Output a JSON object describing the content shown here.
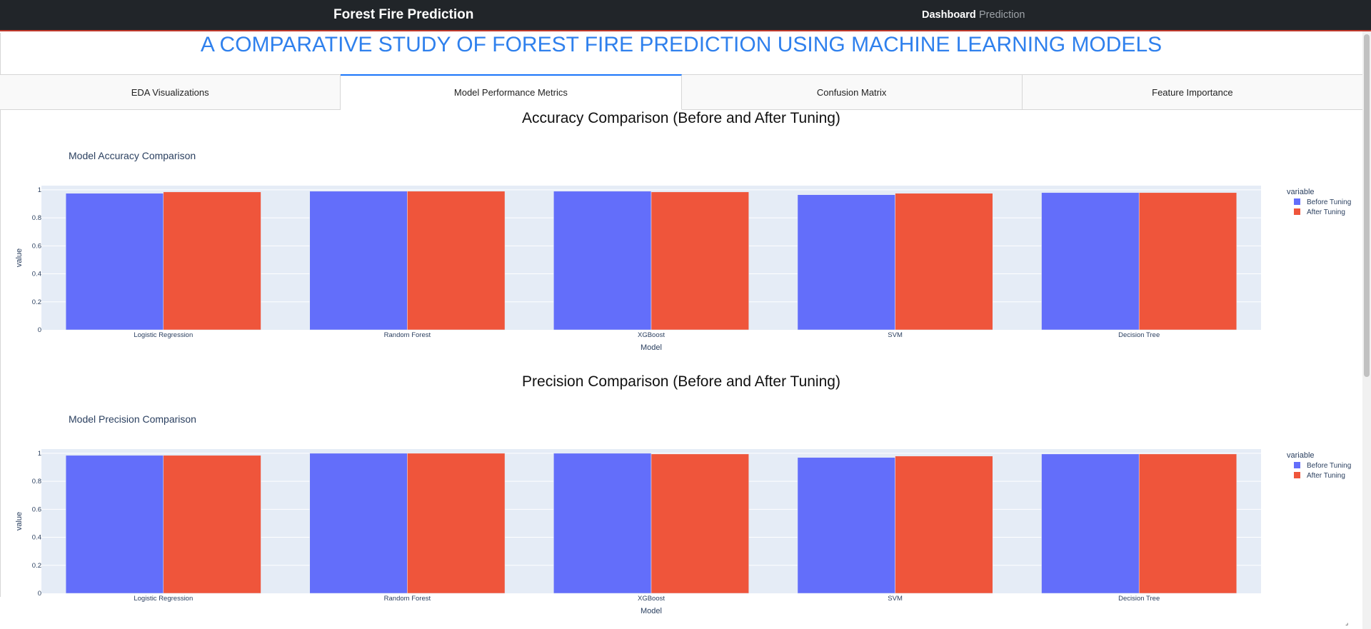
{
  "navbar": {
    "brand": "Forest Fire Prediction",
    "links": [
      {
        "label": "Dashboard",
        "active": true
      },
      {
        "label": "Prediction",
        "active": false
      }
    ]
  },
  "page_title": "A COMPARATIVE STUDY OF FOREST FIRE PREDICTION USING MACHINE LEARNING MODELS",
  "tabs": [
    {
      "label": "EDA Visualizations",
      "selected": false
    },
    {
      "label": "Model Performance Metrics",
      "selected": true
    },
    {
      "label": "Confusion Matrix",
      "selected": false
    },
    {
      "label": "Feature Importance",
      "selected": false
    }
  ],
  "sections": [
    {
      "heading": "Accuracy Comparison (Before and After Tuning)"
    },
    {
      "heading": "Precision Comparison (Before and After Tuning)"
    }
  ],
  "colors": {
    "before": "#636efa",
    "after": "#ef553b",
    "plot_bg": "#e5ecf6",
    "accent": "#2f80ed"
  },
  "chart_data": [
    {
      "type": "bar",
      "title": "Model Accuracy Comparison",
      "xlabel": "Model",
      "ylabel": "value",
      "categories": [
        "Logistic Regression",
        "Random Forest",
        "XGBoost",
        "SVM",
        "Decision Tree"
      ],
      "series": [
        {
          "name": "Before Tuning",
          "values": [
            0.975,
            0.99,
            0.99,
            0.965,
            0.98
          ]
        },
        {
          "name": "After Tuning",
          "values": [
            0.985,
            0.99,
            0.985,
            0.975,
            0.98
          ]
        }
      ],
      "ylim": [
        0,
        1.03
      ],
      "yticks": [
        "0",
        "0.2",
        "0.4",
        "0.6",
        "0.8",
        "1"
      ],
      "legend_title": "variable",
      "legend_position": "right",
      "grid": true
    },
    {
      "type": "bar",
      "title": "Model Precision Comparison",
      "xlabel": "Model",
      "ylabel": "value",
      "categories": [
        "Logistic Regression",
        "Random Forest",
        "XGBoost",
        "SVM",
        "Decision Tree"
      ],
      "series": [
        {
          "name": "Before Tuning",
          "values": [
            0.985,
            1.0,
            1.0,
            0.97,
            0.995
          ]
        },
        {
          "name": "After Tuning",
          "values": [
            0.985,
            1.0,
            0.995,
            0.98,
            0.995
          ]
        }
      ],
      "ylim": [
        0,
        1.03
      ],
      "yticks": [
        "0",
        "0.2",
        "0.4",
        "0.6",
        "0.8",
        "1"
      ],
      "legend_title": "variable",
      "legend_position": "right",
      "grid": true
    }
  ]
}
